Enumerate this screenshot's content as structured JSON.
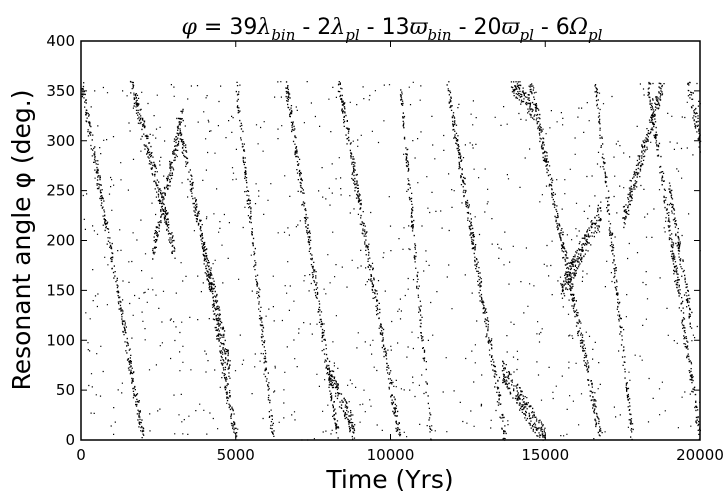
{
  "chart_data": {
    "type": "scatter",
    "title_parts": [
      {
        "text": "φ",
        "style": "it"
      },
      {
        "text": " = 39",
        "style": ""
      },
      {
        "text": "λ",
        "style": "it"
      },
      {
        "text": "bin",
        "style": "sub"
      },
      {
        "text": " - 2",
        "style": ""
      },
      {
        "text": "λ",
        "style": "it"
      },
      {
        "text": "pl",
        "style": "sub"
      },
      {
        "text": " - 13",
        "style": ""
      },
      {
        "text": "ϖ",
        "style": "it"
      },
      {
        "text": "bin",
        "style": "sub"
      },
      {
        "text": " - 20",
        "style": ""
      },
      {
        "text": "ϖ",
        "style": "it"
      },
      {
        "text": "pl",
        "style": "sub"
      },
      {
        "text": " - 6",
        "style": ""
      },
      {
        "text": "Ω",
        "style": "it"
      },
      {
        "text": "pl",
        "style": "sub"
      }
    ],
    "xlabel": "Time (Yrs)",
    "ylabel_parts": [
      {
        "text": "Resonant angle ",
        "style": ""
      },
      {
        "text": "φ",
        "style": "it"
      },
      {
        "text": " (deg.)",
        "style": ""
      }
    ],
    "xlim": [
      0,
      20000
    ],
    "ylim": [
      0,
      400
    ],
    "xticks": [
      0,
      5000,
      10000,
      15000,
      20000
    ],
    "yticks": [
      0,
      50,
      100,
      150,
      200,
      250,
      300,
      350,
      400
    ],
    "grid": false,
    "legend": false,
    "marker_color": "#000000",
    "trend_segments": [
      {
        "x0": 0,
        "x1": 2000,
        "y0": 360,
        "y1": 0
      },
      {
        "x0": 1600,
        "x1": 3000,
        "y0": 360,
        "y1": 190
      },
      {
        "x0": 2300,
        "x1": 3300,
        "y0": 190,
        "y1": 330
      },
      {
        "x0": 3100,
        "x1": 4800,
        "y0": 320,
        "y1": 70
      },
      {
        "x0": 3900,
        "x1": 5000,
        "y0": 200,
        "y1": 0
      },
      {
        "x0": 5000,
        "x1": 6200,
        "y0": 360,
        "y1": 0
      },
      {
        "x0": 6600,
        "x1": 8300,
        "y0": 360,
        "y1": 0
      },
      {
        "x0": 8000,
        "x1": 8800,
        "y0": 70,
        "y1": 10
      },
      {
        "x0": 8300,
        "x1": 10300,
        "y0": 360,
        "y1": 0
      },
      {
        "x0": 10300,
        "x1": 11300,
        "y0": 360,
        "y1": 0
      },
      {
        "x0": 11800,
        "x1": 13700,
        "y0": 360,
        "y1": 0
      },
      {
        "x0": 13600,
        "x1": 15000,
        "y0": 70,
        "y1": 0
      },
      {
        "x0": 13900,
        "x1": 14600,
        "y0": 360,
        "y1": 330
      },
      {
        "x0": 14500,
        "x1": 16800,
        "y0": 360,
        "y1": 0
      },
      {
        "x0": 15500,
        "x1": 16800,
        "y0": 150,
        "y1": 230
      },
      {
        "x0": 16600,
        "x1": 17800,
        "y0": 360,
        "y1": 0
      },
      {
        "x0": 17500,
        "x1": 18800,
        "y0": 220,
        "y1": 360
      },
      {
        "x0": 18300,
        "x1": 20000,
        "y0": 360,
        "y1": 0
      },
      {
        "x0": 19000,
        "x1": 19700,
        "y0": 250,
        "y1": 120
      },
      {
        "x0": 19600,
        "x1": 20000,
        "y0": 360,
        "y1": 300
      }
    ]
  }
}
